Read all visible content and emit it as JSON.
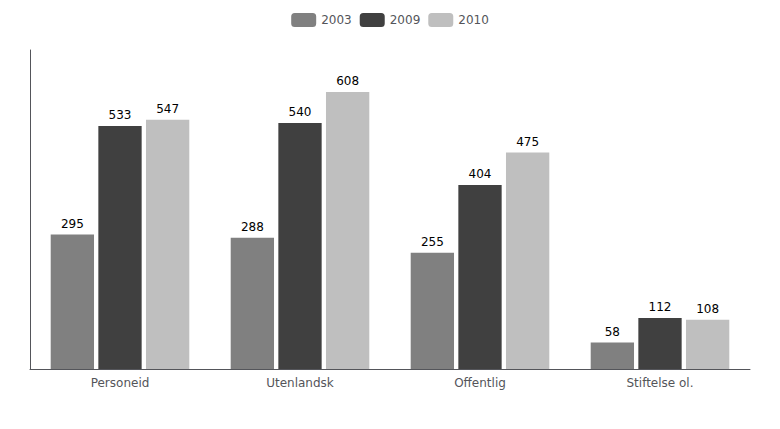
{
  "chart_data": {
    "type": "bar",
    "categories": [
      "Personeid",
      "Utenlandsk",
      "Offentlig",
      "Stiftelse ol."
    ],
    "series": [
      {
        "name": "2003",
        "color": "#808080",
        "values": [
          295,
          288,
          255,
          58
        ]
      },
      {
        "name": "2009",
        "color": "#404040",
        "values": [
          533,
          540,
          404,
          112
        ]
      },
      {
        "name": "2010",
        "color": "#BFBFBF",
        "values": [
          547,
          608,
          475,
          108
        ]
      }
    ],
    "ylim": [
      0,
      700
    ],
    "grid": false,
    "legend": "top",
    "data_labels": true,
    "tick_labels": "x"
  }
}
